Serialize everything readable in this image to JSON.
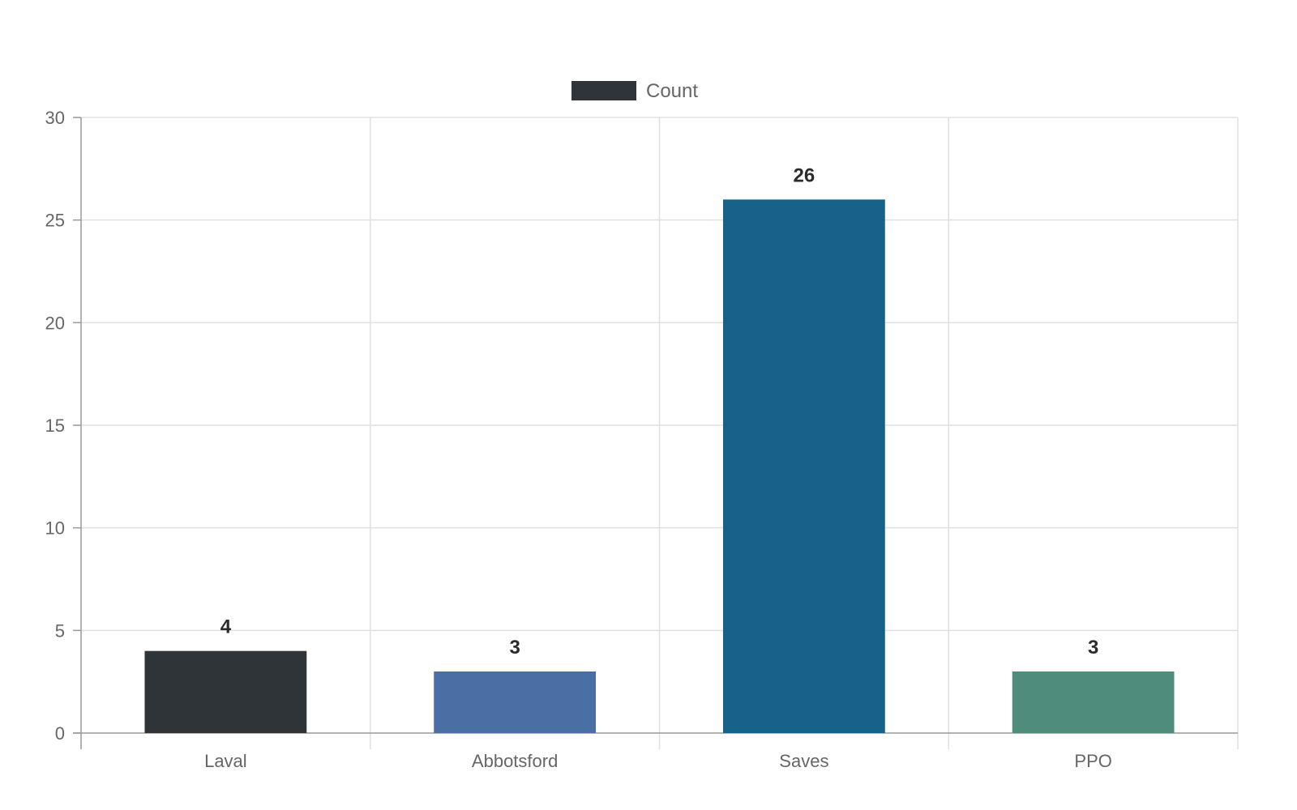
{
  "chart_data": {
    "type": "bar",
    "categories": [
      "Laval",
      "Abbotsford",
      "Saves",
      "PPO"
    ],
    "series": [
      {
        "name": "Count",
        "values": [
          4,
          3,
          26,
          3
        ],
        "colors": [
          "#2e3437",
          "#4a6fa5",
          "#17628a",
          "#4f8c7c"
        ]
      }
    ],
    "data_labels": [
      "4",
      "3",
      "26",
      "3"
    ],
    "legend": {
      "label": "Count",
      "swatch_color": "#2e3437",
      "placement": "top"
    },
    "ylim": [
      0,
      30
    ],
    "yticks": [
      0,
      5,
      10,
      15,
      20,
      25,
      30
    ],
    "ytick_labels": [
      "0",
      "5",
      "10",
      "15",
      "20",
      "25",
      "30"
    ],
    "grid": true,
    "colors": {
      "grid": "#e0e0e0",
      "axis": "#999999",
      "text": "#666666",
      "data_label": "#2b2b2b"
    }
  }
}
